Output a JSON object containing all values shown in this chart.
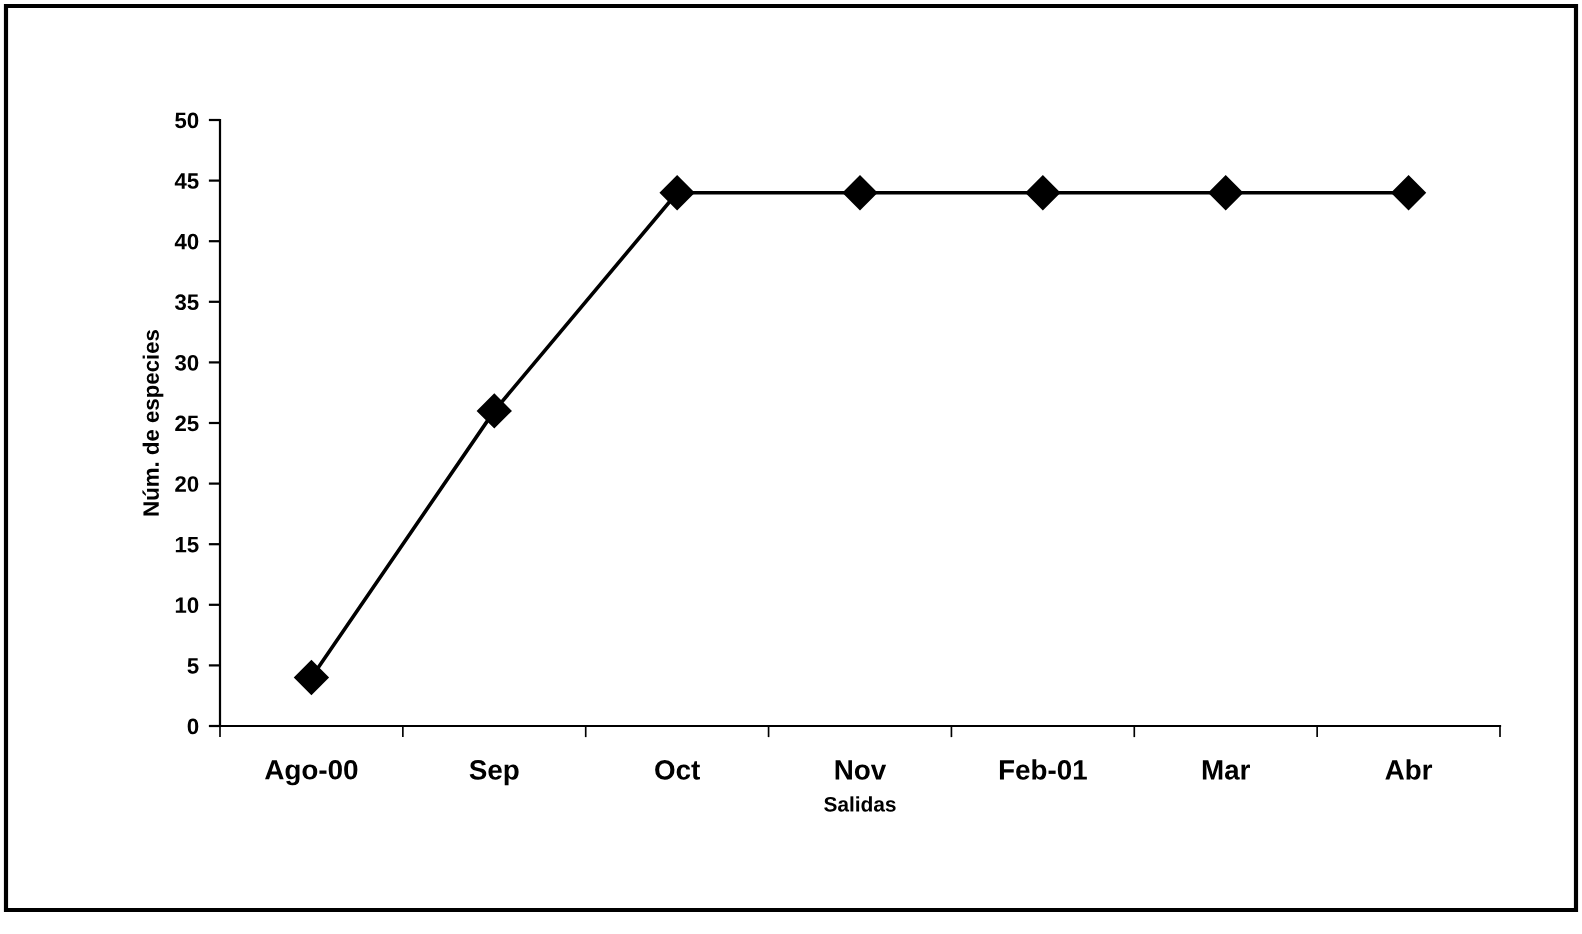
{
  "chart_data": {
    "type": "line",
    "xlabel": "Salidas",
    "ylabel": "Núm. de especies",
    "categories": [
      "Ago-00",
      "Sep",
      "Oct",
      "Nov",
      "Feb-01",
      "Mar",
      "Abr"
    ],
    "series": [
      {
        "color": "#000000",
        "values": [
          4,
          26,
          44,
          44,
          44,
          44,
          44
        ]
      }
    ],
    "ylim": [
      0,
      50
    ],
    "yticks": [
      0,
      5,
      10,
      15,
      20,
      25,
      30,
      35,
      40,
      45,
      50
    ],
    "marker": "diamond",
    "line_style": "solid",
    "grid": false,
    "legend": false
  }
}
